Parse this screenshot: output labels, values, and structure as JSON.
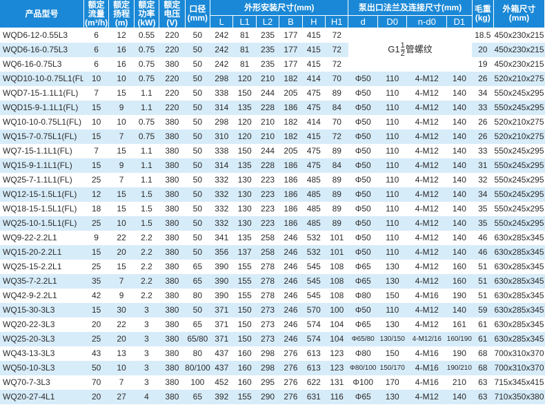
{
  "headers": {
    "model": "产品型号",
    "flow": [
      "额定",
      "流量",
      "(m³/h)"
    ],
    "head": [
      "额定",
      "扬程",
      "(m)"
    ],
    "power": [
      "额定",
      "功率",
      "(kW)"
    ],
    "voltage": [
      "额定",
      "电压",
      "(V)"
    ],
    "caliber": [
      "口径",
      "(mm)"
    ],
    "install": "外形安装尺寸(mm)",
    "flange": "泵出口法兰及连接尺寸(mm)",
    "weight": [
      "毛重",
      "(kg)"
    ],
    "box": [
      "外箱尺寸",
      "(mm)"
    ],
    "sub": [
      "L",
      "L1",
      "L2",
      "B",
      "H",
      "H1",
      "d",
      "D0",
      "n-d0",
      "D1"
    ]
  },
  "thread": {
    "prefix": "G1",
    "numerator": "1",
    "denominator": "2",
    "suffix": "管螺纹"
  },
  "rows": [
    [
      "WQD6-12-0.55L3",
      "6",
      "12",
      "0.55",
      "220",
      "50",
      "242",
      "81",
      "235",
      "177",
      "415",
      "72",
      "",
      "",
      "",
      "",
      "18.5",
      "450x230x215"
    ],
    [
      "WQD6-16-0.75L3",
      "6",
      "16",
      "0.75",
      "220",
      "50",
      "242",
      "81",
      "235",
      "177",
      "415",
      "72",
      "",
      "",
      "",
      "",
      "20",
      "450x230x215"
    ],
    [
      "WQ6-16-0.75L3",
      "6",
      "16",
      "0.75",
      "380",
      "50",
      "242",
      "81",
      "235",
      "177",
      "415",
      "72",
      "",
      "",
      "",
      "",
      "19",
      "450x230x215"
    ],
    [
      "WQD10-10-0.75L1(FL)",
      "10",
      "10",
      "0.75",
      "220",
      "50",
      "298",
      "120",
      "210",
      "182",
      "414",
      "70",
      "Φ50",
      "110",
      "4-M12",
      "140",
      "26",
      "520x210x275"
    ],
    [
      "WQD7-15-1.1L1(FL)",
      "7",
      "15",
      "1.1",
      "220",
      "50",
      "338",
      "150",
      "244",
      "205",
      "475",
      "89",
      "Φ50",
      "110",
      "4-M12",
      "140",
      "34",
      "550x245x295"
    ],
    [
      "WQD15-9-1.1L1(FL)",
      "15",
      "9",
      "1.1",
      "220",
      "50",
      "314",
      "135",
      "228",
      "186",
      "475",
      "84",
      "Φ50",
      "110",
      "4-M12",
      "140",
      "33",
      "550x245x295"
    ],
    [
      "WQ10-10-0.75L1(FL)",
      "10",
      "10",
      "0.75",
      "380",
      "50",
      "298",
      "120",
      "210",
      "182",
      "414",
      "70",
      "Φ50",
      "110",
      "4-M12",
      "140",
      "26",
      "520x210x275"
    ],
    [
      "WQ15-7-0.75L1(FL)",
      "15",
      "7",
      "0.75",
      "380",
      "50",
      "310",
      "120",
      "210",
      "182",
      "415",
      "72",
      "Φ50",
      "110",
      "4-M12",
      "140",
      "26",
      "520x210x275"
    ],
    [
      "WQ7-15-1.1L1(FL)",
      "7",
      "15",
      "1.1",
      "380",
      "50",
      "338",
      "150",
      "244",
      "205",
      "475",
      "89",
      "Φ50",
      "110",
      "4-M12",
      "140",
      "33",
      "550x245x295"
    ],
    [
      "WQ15-9-1.1L1(FL)",
      "15",
      "9",
      "1.1",
      "380",
      "50",
      "314",
      "135",
      "228",
      "186",
      "475",
      "84",
      "Φ50",
      "110",
      "4-M12",
      "140",
      "31",
      "550x245x295"
    ],
    [
      "WQ25-7-1.1L1(FL)",
      "25",
      "7",
      "1.1",
      "380",
      "50",
      "332",
      "130",
      "223",
      "186",
      "485",
      "89",
      "Φ50",
      "110",
      "4-M12",
      "140",
      "32",
      "550x245x295"
    ],
    [
      "WQ12-15-1.5L1(FL)",
      "12",
      "15",
      "1.5",
      "380",
      "50",
      "332",
      "130",
      "223",
      "186",
      "485",
      "89",
      "Φ50",
      "110",
      "4-M12",
      "140",
      "34",
      "550x245x295"
    ],
    [
      "WQ18-15-1.5L1(FL)",
      "18",
      "15",
      "1.5",
      "380",
      "50",
      "332",
      "130",
      "223",
      "186",
      "485",
      "89",
      "Φ50",
      "110",
      "4-M12",
      "140",
      "35",
      "550x245x295"
    ],
    [
      "WQ25-10-1.5L1(FL)",
      "25",
      "10",
      "1.5",
      "380",
      "50",
      "332",
      "130",
      "223",
      "186",
      "485",
      "89",
      "Φ50",
      "110",
      "4-M12",
      "140",
      "35",
      "550x245x295"
    ],
    [
      "WQ9-22-2.2L1",
      "9",
      "22",
      "2.2",
      "380",
      "50",
      "341",
      "135",
      "258",
      "246",
      "532",
      "101",
      "Φ50",
      "110",
      "4-M12",
      "140",
      "46",
      "630x285x345"
    ],
    [
      "WQ15-20-2.2L1",
      "15",
      "20",
      "2.2",
      "380",
      "50",
      "356",
      "137",
      "258",
      "246",
      "532",
      "101",
      "Φ50",
      "110",
      "4-M12",
      "140",
      "46",
      "630x285x345"
    ],
    [
      "WQ25-15-2.2L1",
      "25",
      "15",
      "2.2",
      "380",
      "65",
      "390",
      "155",
      "278",
      "246",
      "545",
      "108",
      "Φ65",
      "130",
      "4-M12",
      "160",
      "51",
      "630x285x345"
    ],
    [
      "WQ35-7-2.2L1",
      "35",
      "7",
      "2.2",
      "380",
      "65",
      "390",
      "155",
      "278",
      "246",
      "545",
      "108",
      "Φ65",
      "130",
      "4-M12",
      "160",
      "51",
      "630x285x345"
    ],
    [
      "WQ42-9-2.2L1",
      "42",
      "9",
      "2.2",
      "380",
      "80",
      "390",
      "155",
      "278",
      "246",
      "545",
      "108",
      "Φ80",
      "150",
      "4-M16",
      "190",
      "51",
      "630x285x345"
    ],
    [
      "WQ15-30-3L3",
      "15",
      "30",
      "3",
      "380",
      "50",
      "371",
      "150",
      "273",
      "246",
      "570",
      "100",
      "Φ50",
      "110",
      "4-M12",
      "140",
      "59",
      "630x285x345"
    ],
    [
      "WQ20-22-3L3",
      "20",
      "22",
      "3",
      "380",
      "65",
      "371",
      "150",
      "273",
      "246",
      "574",
      "104",
      "Φ65",
      "130",
      "4-M12",
      "161",
      "61",
      "630x285x345"
    ],
    [
      "WQ25-20-3L3",
      "25",
      "20",
      "3",
      "380",
      "65/80",
      "371",
      "150",
      "273",
      "246",
      "574",
      "104",
      "Φ65/80",
      "130/150",
      "4-M12/16",
      "160/190",
      "61",
      "630x285x345"
    ],
    [
      "WQ43-13-3L3",
      "43",
      "13",
      "3",
      "380",
      "80",
      "437",
      "160",
      "298",
      "276",
      "613",
      "123",
      "Φ80",
      "150",
      "4-M16",
      "190",
      "68",
      "700x310x370"
    ],
    [
      "WQ50-10-3L3",
      "50",
      "10",
      "3",
      "380",
      "80/100",
      "437",
      "160",
      "298",
      "276",
      "613",
      "123",
      "Φ80/100",
      "150/170",
      "4-M16",
      "190/210",
      "68",
      "700x310x370"
    ],
    [
      "WQ70-7-3L3",
      "70",
      "7",
      "3",
      "380",
      "100",
      "452",
      "160",
      "295",
      "276",
      "622",
      "131",
      "Φ100",
      "170",
      "4-M16",
      "210",
      "63",
      "715x345x415"
    ],
    [
      "WQ20-27-4L1",
      "20",
      "27",
      "4",
      "380",
      "65",
      "392",
      "155",
      "290",
      "276",
      "631",
      "116",
      "Φ65",
      "130",
      "4-M12",
      "140",
      "63",
      "710x350x380"
    ]
  ],
  "colors": {
    "header_bg": "#1a88d6",
    "stripe_bg": "#d7ecf9"
  }
}
